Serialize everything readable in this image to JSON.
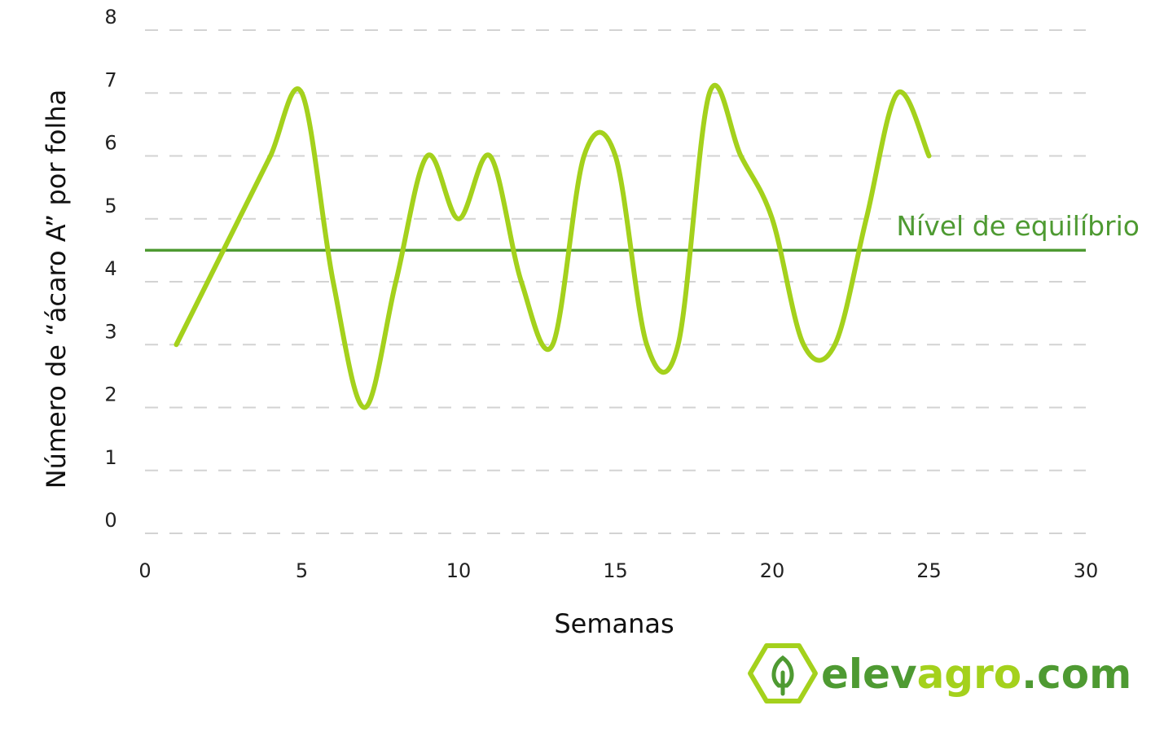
{
  "chart_data": {
    "type": "line",
    "title": "",
    "xlabel": "Semanas",
    "ylabel": "Número de “ácaro A” por folha",
    "xlim": [
      0,
      30
    ],
    "ylim": [
      0,
      8
    ],
    "x_ticks": [
      "0",
      "5",
      "10",
      "15",
      "20",
      "25",
      "30"
    ],
    "y_ticks": [
      "0",
      "1",
      "2",
      "3",
      "4",
      "5",
      "6",
      "7",
      "8"
    ],
    "grid": true,
    "series": [
      {
        "color": "#a4d11c",
        "x": [
          1,
          2,
          3,
          4,
          5,
          6,
          7,
          8,
          9,
          10,
          11,
          12,
          13,
          14,
          15,
          16,
          17,
          18,
          19,
          20,
          21,
          22,
          23,
          24,
          25
        ],
        "y": [
          3,
          4,
          5,
          6,
          7,
          4,
          2,
          4,
          6,
          5,
          6,
          4,
          3,
          6,
          6,
          3,
          3,
          7,
          6,
          5,
          3,
          3,
          5,
          7,
          6
        ]
      }
    ],
    "reference_line": {
      "label": "Nível de equilíbrio",
      "y": 4.5,
      "color": "#4e9a32"
    }
  },
  "logo": {
    "text_part1": "elev",
    "text_part2": "agro",
    "text_part3": ".com",
    "color_dark": "#4e9a32",
    "color_light": "#a4d11c",
    "icon": "leaf-hexagon-icon"
  }
}
